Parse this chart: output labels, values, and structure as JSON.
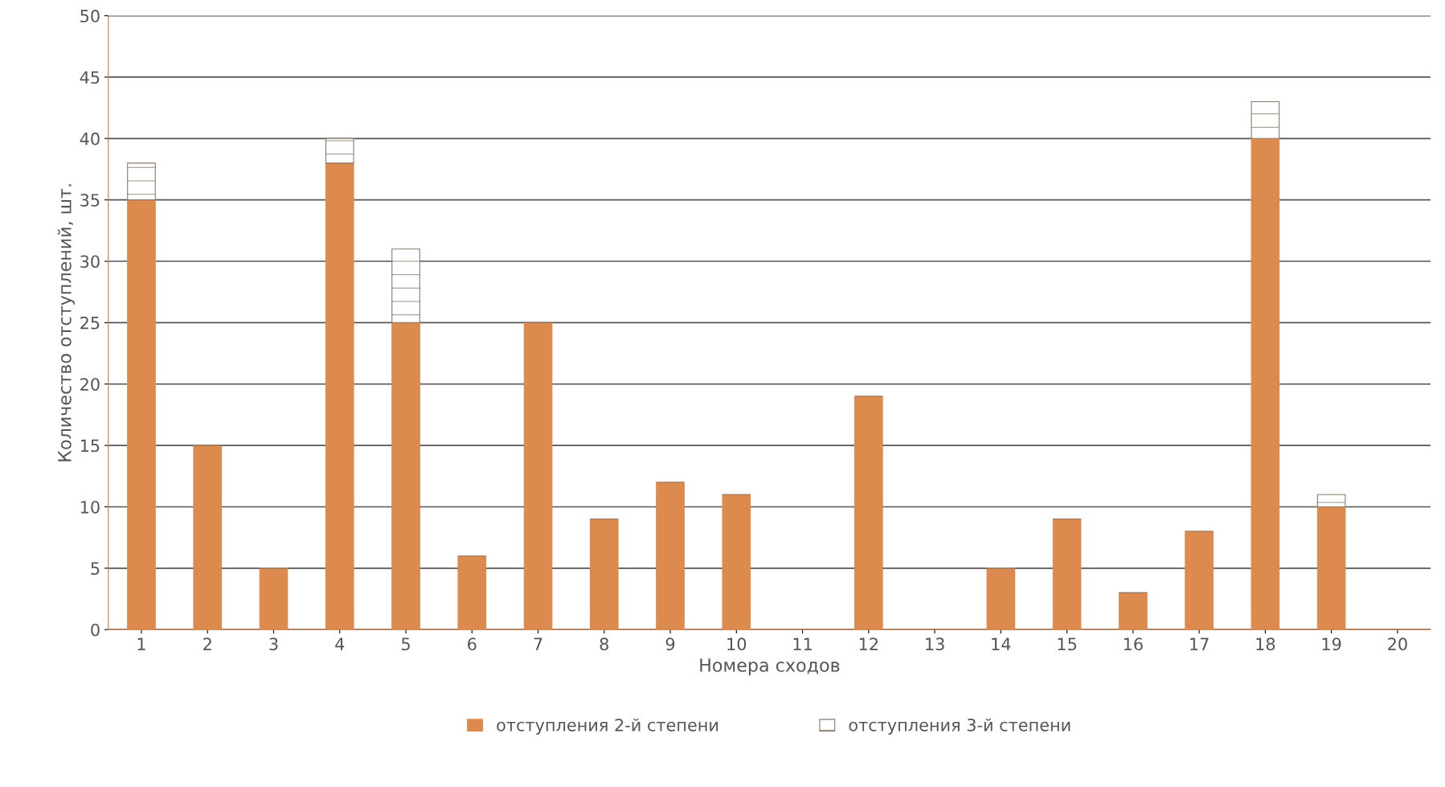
{
  "chart_data": {
    "type": "bar",
    "stacked": true,
    "xlabel": "Номера сходов",
    "ylabel": "Количество отступлений, шт.",
    "categories": [
      "1",
      "2",
      "3",
      "4",
      "5",
      "6",
      "7",
      "8",
      "9",
      "10",
      "11",
      "12",
      "13",
      "14",
      "15",
      "16",
      "17",
      "18",
      "19",
      "20"
    ],
    "series": [
      {
        "name": "отступления 2-й степени",
        "color": "#dd8a4e",
        "values": [
          35,
          15,
          5,
          38,
          25,
          6,
          25,
          9,
          12,
          11,
          0,
          19,
          0,
          5,
          9,
          3,
          8,
          40,
          10,
          0
        ]
      },
      {
        "name": "отступления 3-й степени",
        "color": "#8a7a6a",
        "values": [
          3,
          0,
          0,
          2,
          6,
          0,
          0,
          0,
          0,
          0,
          0,
          0,
          0,
          0,
          0,
          0,
          0,
          3,
          1,
          0
        ]
      }
    ],
    "ylim": [
      0,
      50
    ],
    "yticks": [
      0,
      5,
      10,
      15,
      20,
      25,
      30,
      35,
      40,
      45,
      50
    ],
    "grid": "y",
    "legend": "bottom"
  }
}
